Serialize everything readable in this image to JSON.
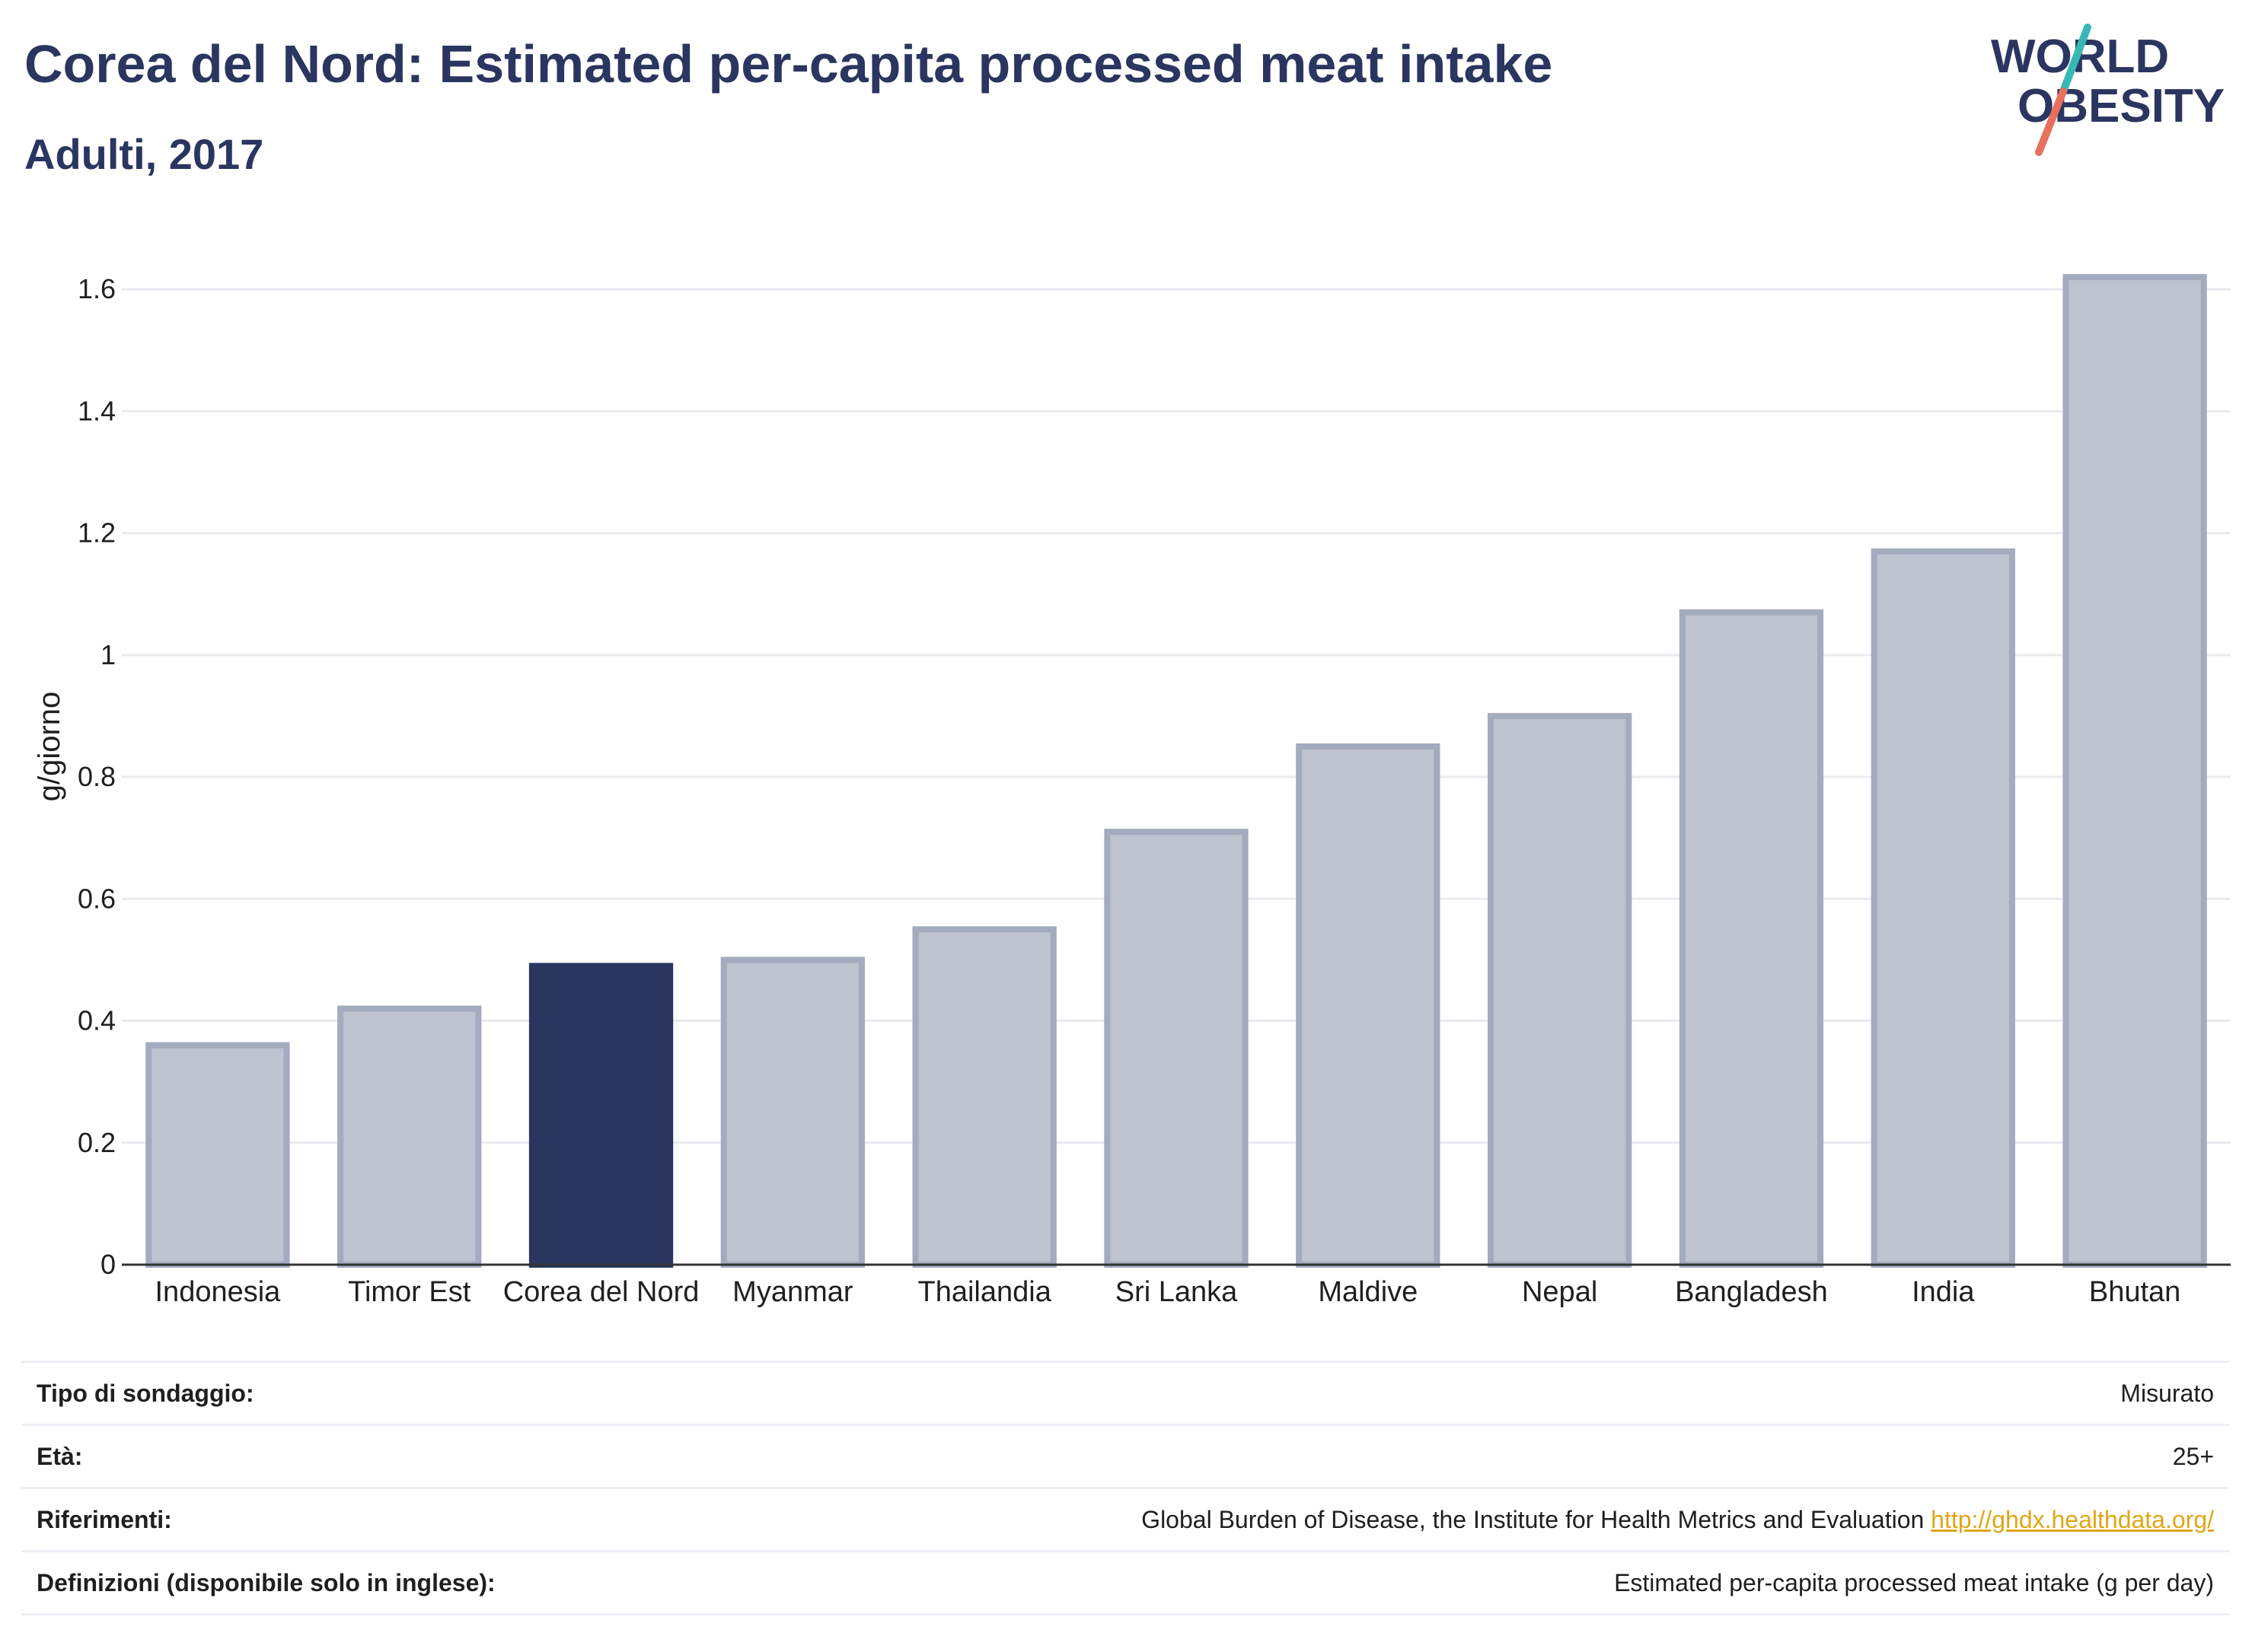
{
  "header": {
    "title": "Corea del Nord: Estimated per-capita processed meat intake",
    "subtitle": "Adulti, 2017"
  },
  "logo": {
    "line1": "WORLD",
    "line2": "OBESITY"
  },
  "colors": {
    "highlight": "#2a3560",
    "bar": "#bec3d0",
    "bar_stroke": "#a3abbe",
    "grid": "#e9ebef",
    "accent_teal": "#38b8b5",
    "accent_coral": "#e8705c"
  },
  "chart_data": {
    "type": "bar",
    "title": "Corea del Nord: Estimated per-capita processed meat intake",
    "subtitle": "Adulti, 2017",
    "ylabel": "g/giorno",
    "xlabel": "",
    "ylim": [
      0,
      1.7
    ],
    "yticks": [
      "0",
      "0.2",
      "0.4",
      "0.6",
      "0.8",
      "1",
      "1.2",
      "1.4",
      "1.6"
    ],
    "categories": [
      "Indonesia",
      "Timor Est",
      "Corea del Nord",
      "Myanmar",
      "Thailandia",
      "Sri Lanka",
      "Maldive",
      "Nepal",
      "Bangladesh",
      "India",
      "Bhutan"
    ],
    "values": [
      0.36,
      0.42,
      0.49,
      0.5,
      0.55,
      0.71,
      0.85,
      0.9,
      1.07,
      1.17,
      1.62
    ],
    "highlight": "Corea del Nord",
    "grid": true
  },
  "meta": [
    {
      "key": "Tipo di sondaggio:",
      "value": "Misurato"
    },
    {
      "key": "Età:",
      "value": "25+"
    },
    {
      "key": "Riferimenti:",
      "value": "Global Burden of Disease, the Institute for Health Metrics and Evaluation",
      "link": "http://ghdx.healthdata.org/"
    },
    {
      "key": "Definizioni (disponibile solo in inglese):",
      "value": "Estimated per-capita processed meat intake (g per day)"
    }
  ]
}
